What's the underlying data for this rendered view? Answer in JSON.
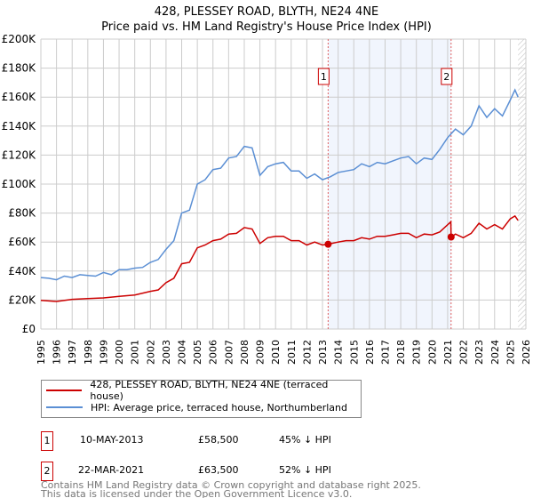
{
  "title": "428, PLESSEY ROAD, BLYTH, NE24 4NE",
  "subtitle": "Price paid vs. HM Land Registry's House Price Index (HPI)",
  "chart_data": {
    "type": "line",
    "title": "428, PLESSEY ROAD, BLYTH, NE24 4NE",
    "subtitle": "Price paid vs. HM Land Registry's House Price Index (HPI)",
    "xlabel": "",
    "ylabel": "",
    "xlim": [
      1995,
      2026
    ],
    "ylim": [
      0,
      200000
    ],
    "x_ticks": [
      "1995",
      "1996",
      "1997",
      "1998",
      "1999",
      "2000",
      "2001",
      "2002",
      "2003",
      "2004",
      "2005",
      "2006",
      "2007",
      "2008",
      "2009",
      "2010",
      "2011",
      "2012",
      "2013",
      "2014",
      "2015",
      "2016",
      "2017",
      "2018",
      "2019",
      "2020",
      "2021",
      "2022",
      "2023",
      "2024",
      "2025",
      "2026"
    ],
    "y_ticks": [
      "£0",
      "£20K",
      "£40K",
      "£60K",
      "£80K",
      "£100K",
      "£120K",
      "£140K",
      "£160K",
      "£180K",
      "£200K"
    ],
    "grid": true,
    "legend_placement": "below",
    "highlight_range": [
      2013.36,
      2021.22
    ],
    "forecast_hatch_from": 2025.5,
    "series": [
      {
        "name": "428, PLESSEY ROAD, BLYTH, NE24 4NE (terraced house)",
        "color": "#cc0000",
        "x": [
          1995,
          1996,
          1997,
          1998,
          1999,
          2000,
          2001,
          2002,
          2002.5,
          2003,
          2003.5,
          2004,
          2004.5,
          2005,
          2005.5,
          2006,
          2006.5,
          2007,
          2007.5,
          2008,
          2008.5,
          2009,
          2009.5,
          2010,
          2010.5,
          2011,
          2011.5,
          2012,
          2012.5,
          2013,
          2013.36,
          2014,
          2014.5,
          2015,
          2015.5,
          2016,
          2016.5,
          2017,
          2017.5,
          2018,
          2018.5,
          2019,
          2019.5,
          2020,
          2020.5,
          2021.2,
          2021.22,
          2021.5,
          2022,
          2022.5,
          2023,
          2023.5,
          2024,
          2024.5,
          2025,
          2025.3,
          2025.5
        ],
        "values": [
          19800,
          19000,
          20500,
          21000,
          21500,
          22500,
          23500,
          26000,
          27000,
          32000,
          35000,
          45000,
          46000,
          56000,
          58000,
          61000,
          62000,
          65500,
          66000,
          70000,
          69000,
          59000,
          63000,
          64000,
          64000,
          61000,
          61000,
          58000,
          60000,
          58000,
          58500,
          60000,
          61000,
          61000,
          63000,
          62000,
          64000,
          64000,
          65000,
          66000,
          66000,
          63000,
          65500,
          65000,
          67000,
          74000,
          63500,
          65500,
          63000,
          66000,
          73000,
          69000,
          72000,
          69000,
          76000,
          78000,
          75000
        ]
      },
      {
        "name": "HPI: Average price, terraced house, Northumberland",
        "color": "#5b8fd4",
        "x": [
          1995,
          1995.5,
          1996,
          1996.5,
          1997,
          1997.5,
          1998,
          1998.5,
          1999,
          1999.5,
          2000,
          2000.5,
          2001,
          2001.5,
          2002,
          2002.5,
          2003,
          2003.5,
          2004,
          2004.5,
          2005,
          2005.5,
          2006,
          2006.5,
          2007,
          2007.5,
          2008,
          2008.5,
          2009,
          2009.5,
          2010,
          2010.5,
          2011,
          2011.5,
          2012,
          2012.5,
          2013,
          2013.5,
          2014,
          2014.5,
          2015,
          2015.5,
          2016,
          2016.5,
          2017,
          2017.5,
          2018,
          2018.5,
          2019,
          2019.5,
          2020,
          2020.5,
          2021,
          2021.5,
          2022,
          2022.5,
          2023,
          2023.5,
          2024,
          2024.5,
          2025,
          2025.3,
          2025.5
        ],
        "values": [
          35500,
          35000,
          34000,
          36500,
          35500,
          37500,
          37000,
          36500,
          39000,
          37500,
          41000,
          41000,
          42000,
          42500,
          46000,
          48000,
          55000,
          61000,
          80000,
          82000,
          100000,
          103000,
          110000,
          111000,
          118000,
          119000,
          126000,
          125000,
          106000,
          112000,
          114000,
          115000,
          109000,
          109000,
          104000,
          107000,
          103000,
          105000,
          108000,
          109000,
          110000,
          114000,
          112000,
          115000,
          114000,
          116000,
          118000,
          119000,
          114000,
          118000,
          117000,
          124000,
          132000,
          138000,
          134000,
          140000,
          154000,
          146000,
          152000,
          147000,
          158000,
          165000,
          160000
        ]
      }
    ],
    "annotations": [
      {
        "label": "1",
        "x": 2013.36,
        "value": 58500
      },
      {
        "label": "2",
        "x": 2021.22,
        "value": 63500
      }
    ]
  },
  "legend": {
    "items": [
      {
        "label": "428, PLESSEY ROAD, BLYTH, NE24 4NE (terraced house)",
        "color": "#cc0000"
      },
      {
        "label": "HPI: Average price, terraced house, Northumberland",
        "color": "#5b8fd4"
      }
    ]
  },
  "transactions": [
    {
      "num": "1",
      "date": "10-MAY-2013",
      "price": "£58,500",
      "hpi": "45% ↓ HPI"
    },
    {
      "num": "2",
      "date": "22-MAR-2021",
      "price": "£63,500",
      "hpi": "52% ↓ HPI"
    }
  ],
  "footer": {
    "line1": "Contains HM Land Registry data © Crown copyright and database right 2025.",
    "line2": "This data is licensed under the Open Government Licence v3.0."
  }
}
